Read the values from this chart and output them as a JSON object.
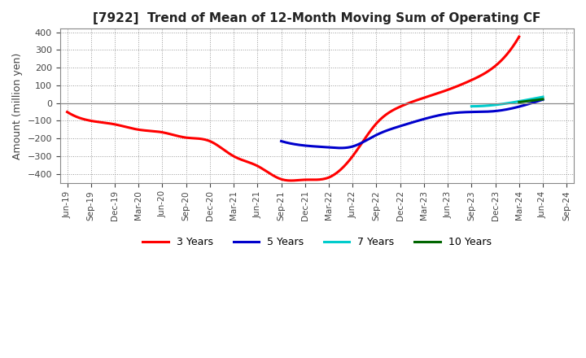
{
  "title": "[7922]  Trend of Mean of 12-Month Moving Sum of Operating CF",
  "ylabel": "Amount (million yen)",
  "ylim": [
    -450,
    420
  ],
  "yticks": [
    -400,
    -300,
    -200,
    -100,
    0,
    100,
    200,
    300,
    400
  ],
  "background_color": "#ffffff",
  "grid_color": "#aaaaaa",
  "series": {
    "3 Years": {
      "color": "#ff0000",
      "x_labels": [
        "Jun-19",
        "Sep-19",
        "Dec-19",
        "Mar-20",
        "Jun-20",
        "Sep-20",
        "Dec-20",
        "Mar-21",
        "Jun-21",
        "Sep-21",
        "Dec-21",
        "Mar-22",
        "Jun-22",
        "Sep-22",
        "Dec-22",
        "Mar-23",
        "Jun-23",
        "Sep-23",
        "Dec-23",
        "Mar-24"
      ],
      "y_values": [
        -50,
        -100,
        -120,
        -150,
        -165,
        -195,
        -215,
        -300,
        -355,
        -430,
        -433,
        -420,
        -300,
        -115,
        -20,
        30,
        75,
        130,
        210,
        375
      ]
    },
    "5 Years": {
      "color": "#0000cc",
      "x_labels": [
        "Sep-21",
        "Dec-21",
        "Mar-22",
        "Jun-22",
        "Sep-22",
        "Dec-22",
        "Mar-23",
        "Jun-23",
        "Sep-23",
        "Dec-23",
        "Mar-24",
        "Jun-24"
      ],
      "y_values": [
        -215,
        -240,
        -250,
        -245,
        -180,
        -130,
        -90,
        -60,
        -50,
        -45,
        -20,
        20
      ]
    },
    "7 Years": {
      "color": "#00cccc",
      "x_labels": [
        "Sep-23",
        "Dec-23",
        "Mar-24",
        "Jun-24"
      ],
      "y_values": [
        -18,
        -10,
        10,
        35
      ]
    },
    "10 Years": {
      "color": "#006600",
      "x_labels": [
        "Mar-24",
        "Jun-24"
      ],
      "y_values": [
        5,
        22
      ]
    }
  },
  "x_tick_labels": [
    "Jun-19",
    "Sep-19",
    "Dec-19",
    "Mar-20",
    "Jun-20",
    "Sep-20",
    "Dec-20",
    "Mar-21",
    "Jun-21",
    "Sep-21",
    "Dec-21",
    "Mar-22",
    "Jun-22",
    "Sep-22",
    "Dec-22",
    "Mar-23",
    "Jun-23",
    "Sep-23",
    "Dec-23",
    "Mar-24",
    "Jun-24",
    "Sep-24"
  ],
  "legend": [
    {
      "label": "3 Years",
      "color": "#ff0000"
    },
    {
      "label": "5 Years",
      "color": "#0000cc"
    },
    {
      "label": "7 Years",
      "color": "#00cccc"
    },
    {
      "label": "10 Years",
      "color": "#006600"
    }
  ]
}
